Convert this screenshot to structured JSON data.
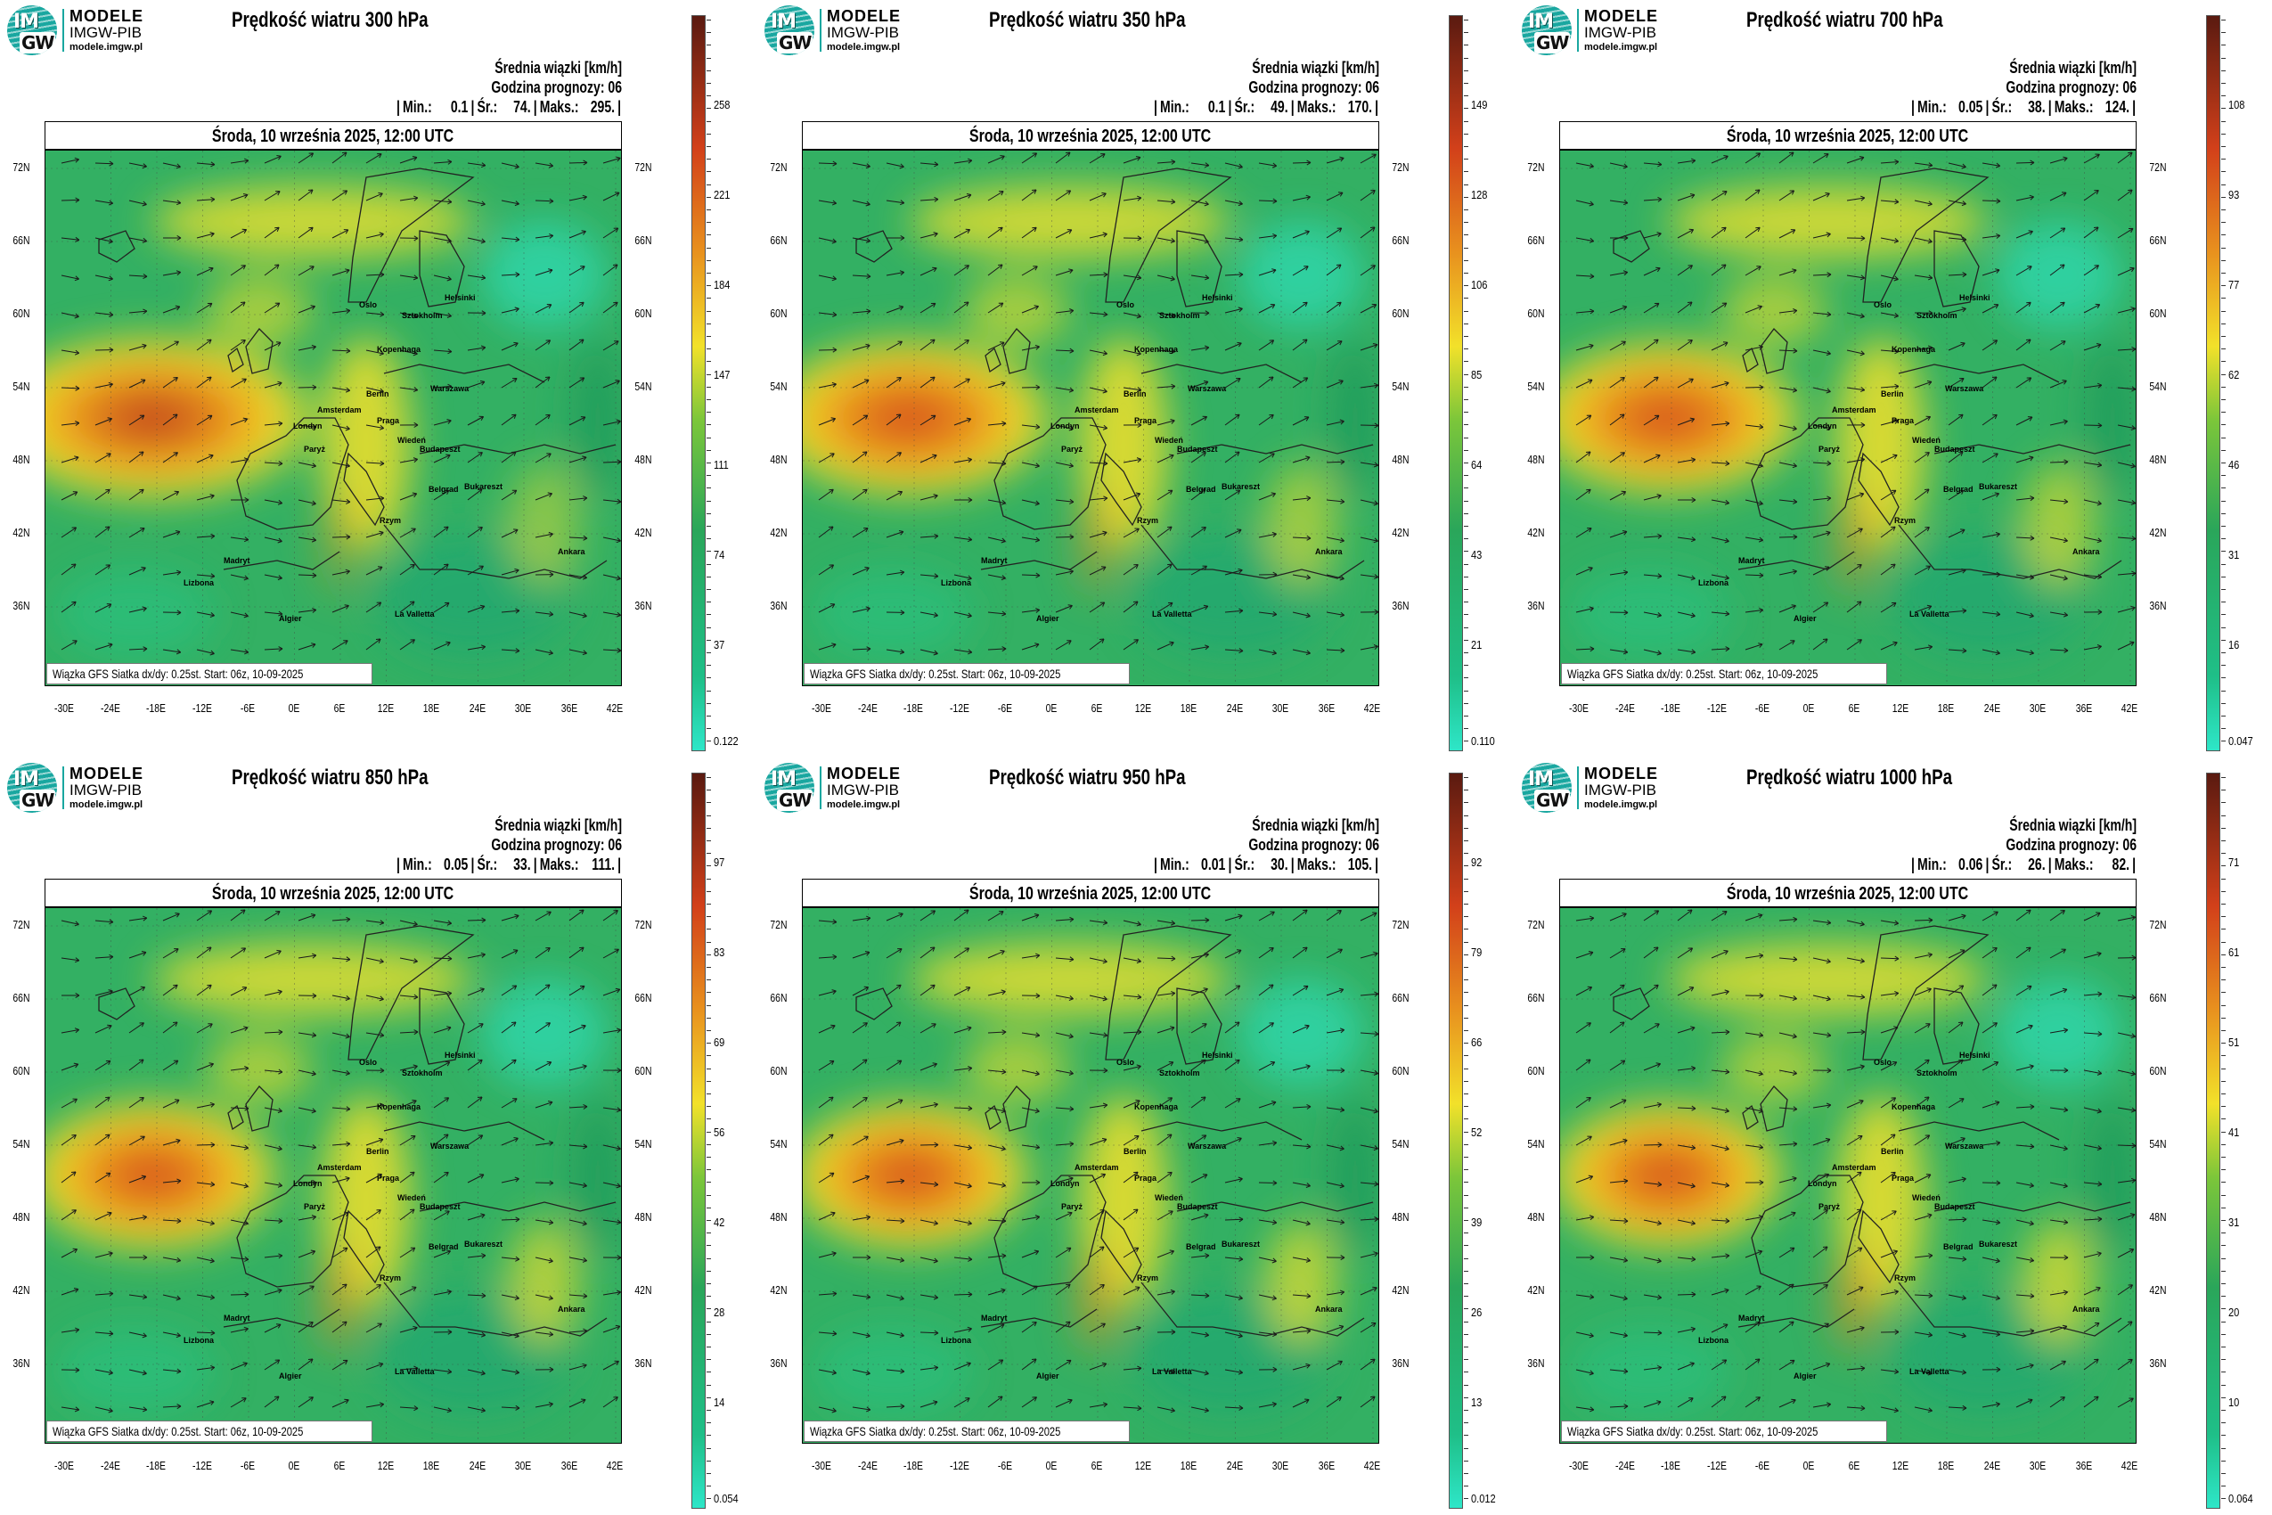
{
  "logo": {
    "brand": "MODELE",
    "org": "IMGW-PIB",
    "url": "modele.imgw.pl",
    "mark_top": "IM",
    "mark_bottom": "GW"
  },
  "common": {
    "subtitle": "Średnia wiązki [km/h]",
    "forecast_hour": "Godzina prognozy: 06",
    "date": "Środa, 10 września 2025, 12:00 UTC",
    "footer": "Wiązka GFS Siatka dx/dy: 0.25st. Start: 06z, 10-09-2025",
    "stat_labels": {
      "min": "Min.:",
      "avg": "Śr.:",
      "max": "Maks.:"
    },
    "lat_labels": [
      "72N",
      "66N",
      "60N",
      "54N",
      "48N",
      "42N",
      "36N"
    ],
    "lon_labels": [
      "-30E",
      "-24E",
      "-18E",
      "-12E",
      "-6E",
      "0E",
      "6E",
      "12E",
      "18E",
      "24E",
      "30E",
      "36E",
      "42E"
    ],
    "cities": [
      "Oslo",
      "Helsinki",
      "Sztokholm",
      "Kopenhaga",
      "Warszawa",
      "Londyn",
      "Amsterdam",
      "Paryż",
      "Berlin",
      "Praga",
      "Wiedeń",
      "Budapeszt",
      "Belgrad",
      "Bukareszt",
      "Rzym",
      "Madryt",
      "Lizbona",
      "Algier",
      "Ankara",
      "La Valletta"
    ],
    "colors": {
      "low": "#2ee6c8",
      "green": "#2aa65a",
      "yellow": "#f2e12a",
      "orange": "#e8901e",
      "red": "#d2401a",
      "dark": "#5a1a10"
    }
  },
  "panels": [
    {
      "title": "Prędkość wiatru 300 hPa",
      "min": "0.1",
      "avg": "74.",
      "max": "295.",
      "ticks": [
        "258",
        "221",
        "184",
        "147",
        "111",
        "74",
        "37",
        "0.122"
      ],
      "jet": 0.95
    },
    {
      "title": "Prędkość wiatru 350 hPa",
      "min": "0.1",
      "avg": "49.",
      "max": "170.",
      "ticks": [
        "149",
        "128",
        "106",
        "85",
        "64",
        "43",
        "21",
        "0.110"
      ],
      "jet": 0.85
    },
    {
      "title": "Prędkość wiatru 700 hPa",
      "min": "0.05",
      "avg": "38.",
      "max": "124.",
      "ticks": [
        "108",
        "93",
        "77",
        "62",
        "46",
        "31",
        "16",
        "0.047"
      ],
      "jet": 0.8
    },
    {
      "title": "Prędkość wiatru 850 hPa",
      "min": "0.05",
      "avg": "33.",
      "max": "111.",
      "ticks": [
        "97",
        "83",
        "69",
        "56",
        "42",
        "28",
        "14",
        "0.054"
      ],
      "jet": 0.75
    },
    {
      "title": "Prędkość wiatru 950 hPa",
      "min": "0.01",
      "avg": "30.",
      "max": "105.",
      "ticks": [
        "92",
        "79",
        "66",
        "52",
        "39",
        "26",
        "13",
        "0.012"
      ],
      "jet": 0.72
    },
    {
      "title": "Prędkość wiatru 1000 hPa",
      "min": "0.06",
      "avg": "26.",
      "max": "82.",
      "ticks": [
        "71",
        "61",
        "51",
        "41",
        "31",
        "20",
        "10",
        "0.064"
      ],
      "jet": 0.7
    }
  ]
}
